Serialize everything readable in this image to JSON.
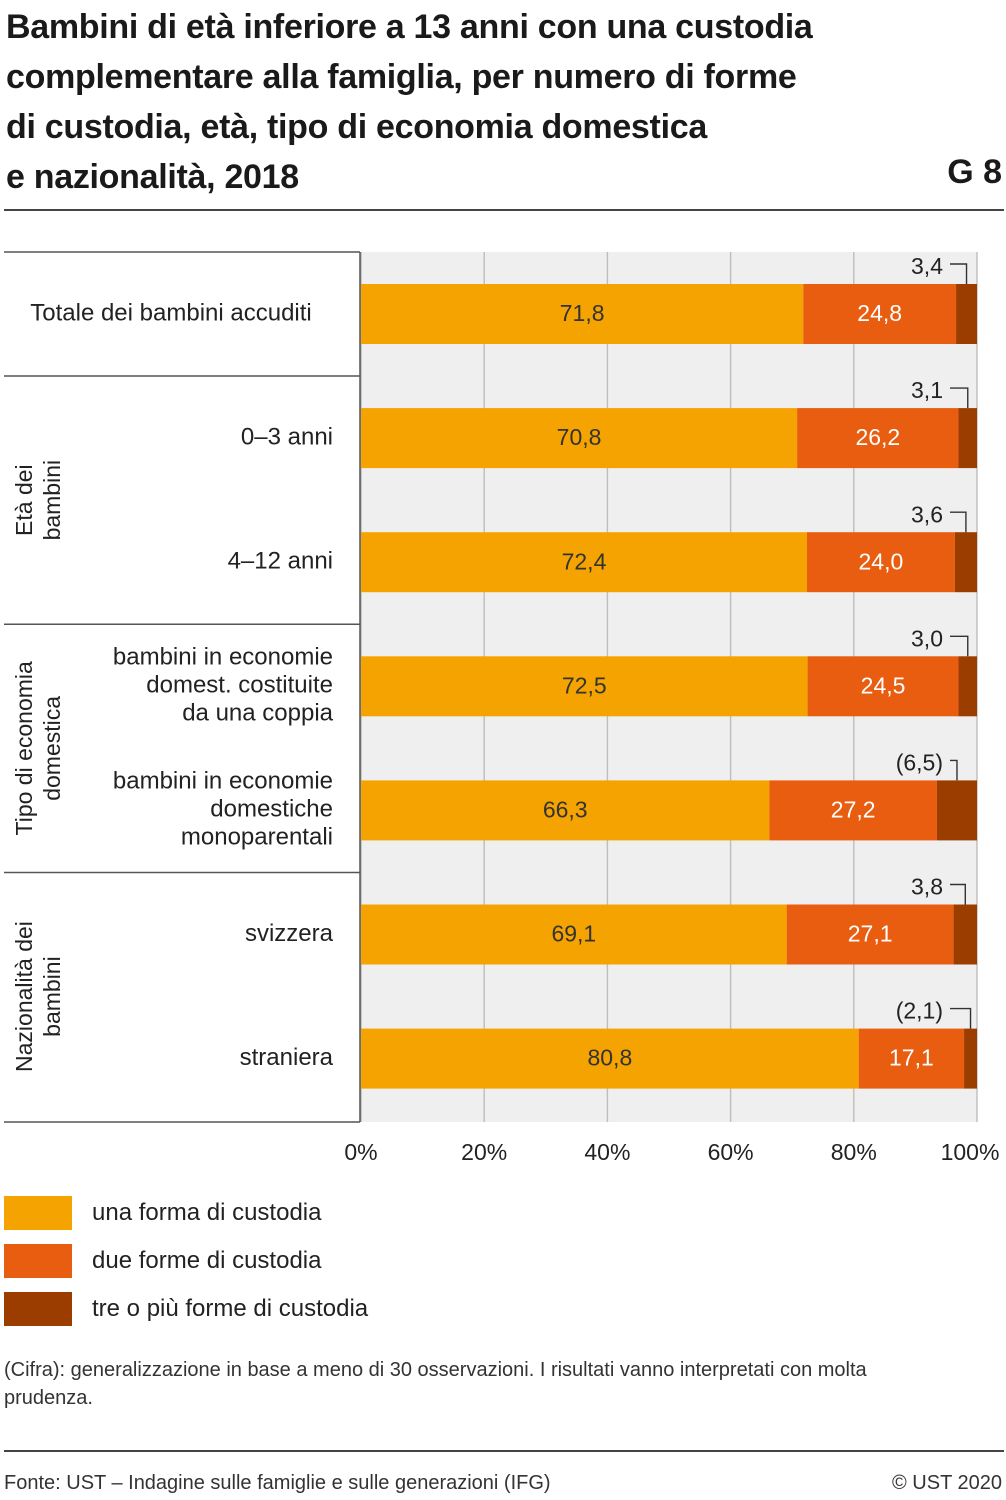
{
  "header": {
    "title_lines": [
      "Bambini di età inferiore a 13 anni con una custodia",
      "complementare alla famiglia, per numero di forme",
      "di custodia, età, tipo di economia domestica",
      "e nazionalità, 2018"
    ],
    "code": "G 8"
  },
  "chart_data": {
    "type": "bar",
    "orientation": "horizontal",
    "stacked": true,
    "xlim": [
      0,
      100
    ],
    "x_ticks": [
      "0%",
      "20%",
      "40%",
      "60%",
      "80%",
      "100%"
    ],
    "grid": true,
    "groups": [
      {
        "label_lines": [],
        "categories": [
          0
        ]
      },
      {
        "label_lines": [
          "Età dei",
          "bambini"
        ],
        "categories": [
          1,
          2
        ]
      },
      {
        "label_lines": [
          "Tipo di economia",
          "domestica"
        ],
        "categories": [
          3,
          4
        ]
      },
      {
        "label_lines": [
          "Nazionalità dei",
          "bambini"
        ],
        "categories": [
          5,
          6
        ]
      }
    ],
    "categories": [
      {
        "label_lines": [
          "Totale dei bambini accuditi"
        ]
      },
      {
        "label_lines": [
          "0–3 anni"
        ]
      },
      {
        "label_lines": [
          "4–12 anni"
        ]
      },
      {
        "label_lines": [
          "bambini in economie",
          "domest. costituite",
          "da una coppia"
        ]
      },
      {
        "label_lines": [
          "bambini in economie",
          "domestiche",
          "monoparentali"
        ]
      },
      {
        "label_lines": [
          "svizzera"
        ]
      },
      {
        "label_lines": [
          "straniera"
        ]
      }
    ],
    "series": [
      {
        "name": "una forma di custodia",
        "color": "#f5a300",
        "values": [
          71.8,
          70.8,
          72.4,
          72.5,
          66.3,
          69.1,
          80.8
        ],
        "labels": [
          "71,8",
          "70,8",
          "72,4",
          "72,5",
          "66,3",
          "69,1",
          "80,8"
        ]
      },
      {
        "name": "due forme di custodia",
        "color": "#e85d10",
        "values": [
          24.8,
          26.2,
          24.0,
          24.5,
          27.2,
          27.1,
          17.1
        ],
        "labels": [
          "24,8",
          "26,2",
          "24,0",
          "24,5",
          "27,2",
          "27,1",
          "17,1"
        ]
      },
      {
        "name": "tre o più forme di custodia",
        "color": "#9c3d00",
        "values": [
          3.4,
          3.1,
          3.6,
          3.0,
          6.5,
          3.8,
          2.1
        ],
        "labels": [
          "3,4",
          "3,1",
          "3,6",
          "3,0",
          "(6,5)",
          "3,8",
          "(2,1)"
        ]
      }
    ]
  },
  "footnote": "(Cifra): generalizzazione in base a meno di 30 osservazioni. I risultati vanno interpretati con molta prudenza.",
  "source": "Fonte: UST – Indagine sulle famiglie e sulle generazioni (IFG)",
  "copyright": "© UST 2020"
}
